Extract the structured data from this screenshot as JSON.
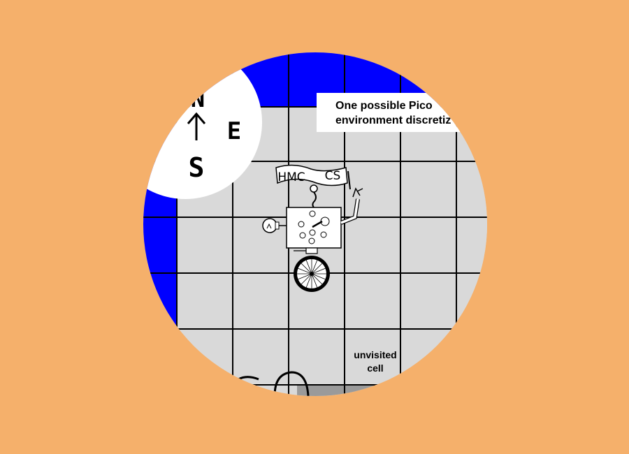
{
  "caption": {
    "line1": "One possible Pico",
    "line2": "environment discretiz"
  },
  "cell_label": {
    "line1": "unvisited",
    "line2": "cell"
  },
  "compass": {
    "north": "N",
    "east": "E",
    "south": "S",
    "arrow": "↑"
  },
  "robot": {
    "banner_left": "HMC",
    "banner_right": "CS"
  },
  "colors": {
    "background": "#f5b06b",
    "wall": "#0000ff",
    "unvisited_cell": "#d9d9d9",
    "grid_line": "#000000"
  },
  "icons": [
    "compass-icon",
    "robot-icon",
    "light-bulb-icon",
    "wheel-icon"
  ]
}
